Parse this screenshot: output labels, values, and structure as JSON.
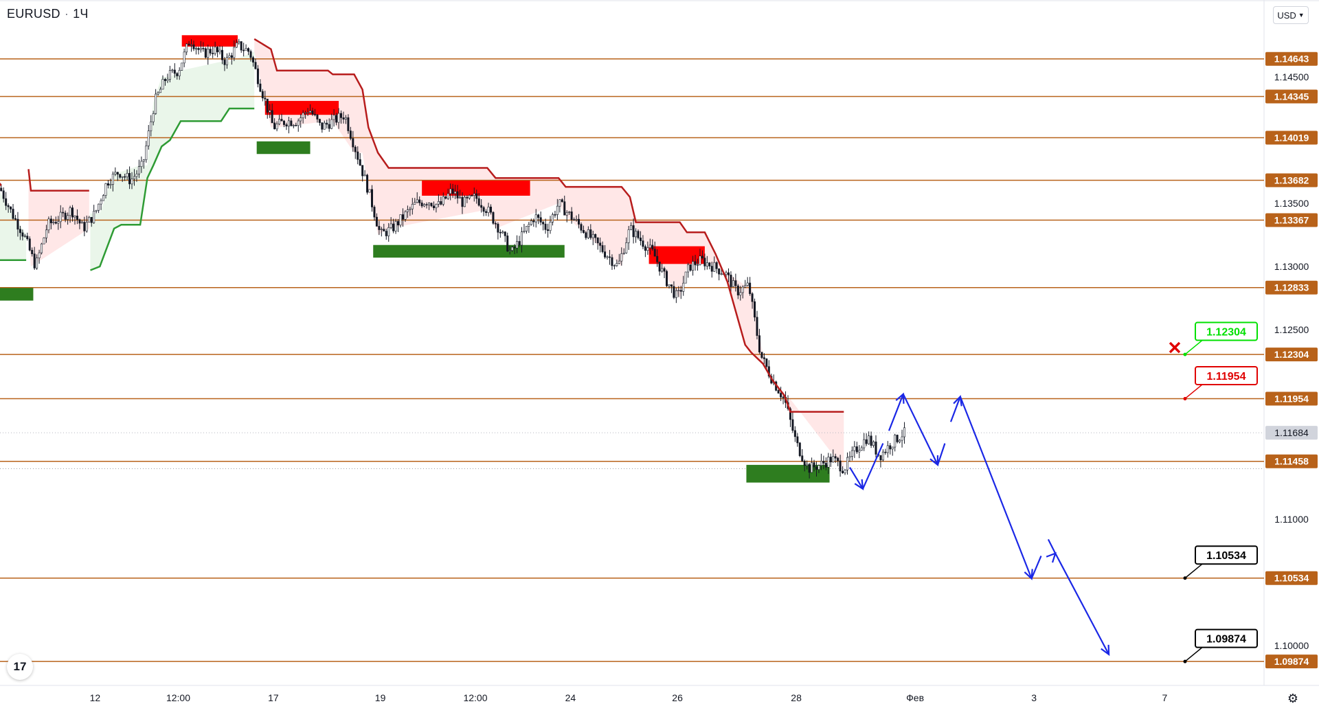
{
  "header": {
    "symbol": "EURUSD",
    "interval": "1Ч",
    "dot": "·"
  },
  "currency_button": {
    "label": "USD"
  },
  "icons": {
    "logo": "tradingview-logo-icon",
    "logo_text": "17",
    "settings": "gear-icon"
  },
  "colors": {
    "level_line": "#b8621a",
    "level_label_bg": "#b8621a",
    "resistance_zone": "#ff0000",
    "support_zone": "#2e7d1f",
    "supertrend_down": "#b71c1c",
    "supertrend_up": "#2e9b34",
    "fill_down": "#ffe3e3",
    "fill_up": "#e6f5e6",
    "forecast": "#1a27e6",
    "candle": "#131722",
    "current_price_bg": "#d1d4dc",
    "target_green": "#00e000",
    "target_red": "#e00000",
    "target_black": "#000000"
  },
  "chart_data": {
    "type": "candlestick",
    "instrument": "EURUSD",
    "timeframe": "1Ч",
    "ylim": [
      1.0942,
      1.169
    ],
    "y_ticks": [
      "1.14500",
      "1.13500",
      "1.13000",
      "1.12500",
      "1.11000",
      "1.10000"
    ],
    "x_ticks": [
      "12",
      "12:00",
      "17",
      "19",
      "12:00",
      "24",
      "26",
      "28",
      "Фев",
      "3",
      "7"
    ],
    "x_tick_index": [
      8,
      15,
      23,
      32,
      40,
      48,
      57,
      67,
      77,
      87,
      98
    ],
    "bars_visible": 106,
    "price_path": [
      [
        0,
        1.1362
      ],
      [
        1,
        1.1342
      ],
      [
        2,
        1.1325
      ],
      [
        3,
        1.13
      ],
      [
        4,
        1.1333
      ],
      [
        5,
        1.1338
      ],
      [
        6,
        1.1345
      ],
      [
        7,
        1.133
      ],
      [
        8,
        1.1342
      ],
      [
        9,
        1.1367
      ],
      [
        10,
        1.1375
      ],
      [
        11,
        1.1368
      ],
      [
        12,
        1.138
      ],
      [
        13,
        1.143
      ],
      [
        14,
        1.145
      ],
      [
        15,
        1.1455
      ],
      [
        16,
        1.148
      ],
      [
        17,
        1.1468
      ],
      [
        18,
        1.1472
      ],
      [
        19,
        1.1462
      ],
      [
        20,
        1.1475
      ],
      [
        21,
        1.147
      ],
      [
        22,
        1.144
      ],
      [
        23,
        1.141
      ],
      [
        24,
        1.1415
      ],
      [
        25,
        1.1415
      ],
      [
        26,
        1.1425
      ],
      [
        27,
        1.141
      ],
      [
        28,
        1.1415
      ],
      [
        29,
        1.142
      ],
      [
        30,
        1.139
      ],
      [
        31,
        1.136
      ],
      [
        32,
        1.1325
      ],
      [
        33,
        1.133
      ],
      [
        34,
        1.134
      ],
      [
        35,
        1.135
      ],
      [
        36,
        1.1352
      ],
      [
        37,
        1.1348
      ],
      [
        38,
        1.136
      ],
      [
        39,
        1.135
      ],
      [
        40,
        1.1355
      ],
      [
        41,
        1.1345
      ],
      [
        42,
        1.133
      ],
      [
        43,
        1.131
      ],
      [
        44,
        1.1325
      ],
      [
        45,
        1.134
      ],
      [
        46,
        1.133
      ],
      [
        47,
        1.135
      ],
      [
        48,
        1.134
      ],
      [
        49,
        1.133
      ],
      [
        50,
        1.132
      ],
      [
        51,
        1.131
      ],
      [
        52,
        1.13
      ],
      [
        53,
        1.133
      ],
      [
        54,
        1.132
      ],
      [
        55,
        1.131
      ],
      [
        56,
        1.129
      ],
      [
        57,
        1.1275
      ],
      [
        58,
        1.13
      ],
      [
        59,
        1.1305
      ],
      [
        60,
        1.13
      ],
      [
        61,
        1.1295
      ],
      [
        62,
        1.128
      ],
      [
        63,
        1.1285
      ],
      [
        64,
        1.123
      ],
      [
        65,
        1.121
      ],
      [
        66,
        1.1195
      ],
      [
        67,
        1.116
      ],
      [
        68,
        1.114
      ],
      [
        69,
        1.1143
      ],
      [
        70,
        1.1148
      ],
      [
        71,
        1.114
      ],
      [
        72,
        1.1155
      ],
      [
        73,
        1.1165
      ],
      [
        74,
        1.115
      ],
      [
        75,
        1.116
      ],
      [
        76,
        1.1168
      ]
    ],
    "levels": [
      {
        "label": "1.14643",
        "value": 1.14643
      },
      {
        "label": "1.14345",
        "value": 1.14345
      },
      {
        "label": "1.14019",
        "value": 1.14019
      },
      {
        "label": "1.13682",
        "value": 1.13682
      },
      {
        "label": "1.13367",
        "value": 1.13367
      },
      {
        "label": "1.12833",
        "value": 1.12833
      },
      {
        "label": "1.12304",
        "value": 1.12304
      },
      {
        "label": "1.11954",
        "value": 1.11954
      },
      {
        "label": "1.11458",
        "value": 1.11458
      },
      {
        "label": "1.10534",
        "value": 1.10534
      },
      {
        "label": "1.09874",
        "value": 1.09874
      }
    ],
    "current_price": {
      "label": "1.11684",
      "value": 1.11684
    },
    "resistance_zones": [
      {
        "i0": 15.3,
        "i1": 20.0,
        "top": 1.1483,
        "bottom": 1.1474
      },
      {
        "i0": 22.3,
        "i1": 28.5,
        "top": 1.1431,
        "bottom": 1.142
      },
      {
        "i0": 35.5,
        "i1": 44.6,
        "top": 1.1368,
        "bottom": 1.1356
      },
      {
        "i0": 54.6,
        "i1": 59.3,
        "top": 1.1316,
        "bottom": 1.1302
      }
    ],
    "support_zones": [
      {
        "i0": -0.2,
        "i1": 2.8,
        "top": 1.1283,
        "bottom": 1.1273
      },
      {
        "i0": 21.6,
        "i1": 26.1,
        "top": 1.1399,
        "bottom": 1.1389
      },
      {
        "i0": 31.4,
        "i1": 47.5,
        "top": 1.1317,
        "bottom": 1.1307
      },
      {
        "i0": 62.8,
        "i1": 69.8,
        "top": 1.1143,
        "bottom": 1.1129
      }
    ],
    "supertrend_down": [
      [
        [
          -0.2,
          1.1368
        ],
        [
          0.1,
          1.1364
        ]
      ],
      [
        [
          2.4,
          1.1377
        ],
        [
          2.6,
          1.136
        ],
        [
          7.5,
          1.136
        ]
      ],
      [
        [
          21.4,
          1.148
        ],
        [
          22.8,
          1.1472
        ],
        [
          23.3,
          1.1455
        ],
        [
          27.6,
          1.1455
        ],
        [
          28.0,
          1.1452
        ],
        [
          29.8,
          1.1452
        ],
        [
          30.5,
          1.144
        ],
        [
          31.0,
          1.141
        ],
        [
          31.8,
          1.139
        ],
        [
          32.7,
          1.1378
        ],
        [
          41.0,
          1.1378
        ],
        [
          41.7,
          1.137
        ],
        [
          47.0,
          1.137
        ],
        [
          47.6,
          1.1363
        ],
        [
          52.3,
          1.1363
        ],
        [
          53.0,
          1.1355
        ],
        [
          53.5,
          1.1335
        ],
        [
          57.2,
          1.1335
        ],
        [
          57.8,
          1.1327
        ],
        [
          59.3,
          1.1327
        ],
        [
          60.2,
          1.131
        ],
        [
          61.2,
          1.1288
        ],
        [
          62.7,
          1.1238
        ],
        [
          63.2,
          1.1232
        ],
        [
          64.2,
          1.1223
        ],
        [
          65.0,
          1.121
        ],
        [
          66.0,
          1.1198
        ],
        [
          66.5,
          1.1185
        ],
        [
          71.0,
          1.1185
        ]
      ]
    ],
    "supertrend_up": [
      [
        [
          -0.2,
          1.1305
        ],
        [
          2.2,
          1.1305
        ]
      ],
      [
        [
          7.6,
          1.1297
        ],
        [
          8.4,
          1.13
        ],
        [
          9.6,
          1.133
        ],
        [
          10.2,
          1.1333
        ],
        [
          11.8,
          1.1333
        ],
        [
          12.4,
          1.137
        ],
        [
          12.9,
          1.138
        ],
        [
          13.6,
          1.1395
        ],
        [
          14.3,
          1.14
        ],
        [
          15.2,
          1.1415
        ],
        [
          18.6,
          1.1415
        ],
        [
          19.3,
          1.1425
        ],
        [
          21.4,
          1.1425
        ]
      ]
    ],
    "forecast_path": [
      [
        71.5,
        1.1141
      ],
      [
        72.6,
        1.1124
      ],
      [
        76.0,
        1.1199
      ],
      [
        78.9,
        1.1143
      ],
      [
        80.8,
        1.1197
      ],
      [
        86.8,
        1.1053
      ],
      [
        88.8,
        1.1073
      ],
      [
        93.3,
        1.0993
      ]
    ],
    "forecast_dash_segments": [
      [
        [
          71.5,
          1.1141
        ],
        [
          72.6,
          1.1124
        ]
      ],
      [
        [
          72.6,
          1.1124
        ],
        [
          74.3,
          1.116
        ]
      ],
      [
        [
          74.8,
          1.117
        ],
        [
          76.0,
          1.1199
        ]
      ],
      [
        [
          76.0,
          1.1199
        ],
        [
          78.9,
          1.1143
        ]
      ],
      [
        [
          78.9,
          1.1143
        ],
        [
          79.5,
          1.116
        ]
      ],
      [
        [
          80.0,
          1.1177
        ],
        [
          80.8,
          1.1197
        ]
      ],
      [
        [
          80.8,
          1.1197
        ],
        [
          86.8,
          1.1053
        ]
      ],
      [
        [
          86.8,
          1.1053
        ],
        [
          87.6,
          1.1071
        ]
      ],
      [
        [
          88.2,
          1.1084
        ],
        [
          88.8,
          1.1073
        ]
      ],
      [
        [
          88.8,
          1.1073
        ],
        [
          93.3,
          1.0993
        ]
      ]
    ],
    "targets": [
      {
        "label": "1.12304",
        "value": 1.12304,
        "style": "green",
        "anchor_value": 1.12304,
        "box_value": 1.12372
      },
      {
        "label": "1.11954",
        "value": 1.11954,
        "style": "red",
        "anchor_value": 1.11954,
        "box_value": 1.12022
      },
      {
        "label": "1.10534",
        "value": 1.10534,
        "style": "black",
        "anchor_value": 1.10534,
        "box_value": 1.10602
      },
      {
        "label": "1.09874",
        "value": 1.09874,
        "style": "black",
        "anchor_value": 1.09874,
        "box_value": 1.09942
      }
    ],
    "cross_marker": {
      "value": 1.12304,
      "color": "#e00000"
    }
  }
}
